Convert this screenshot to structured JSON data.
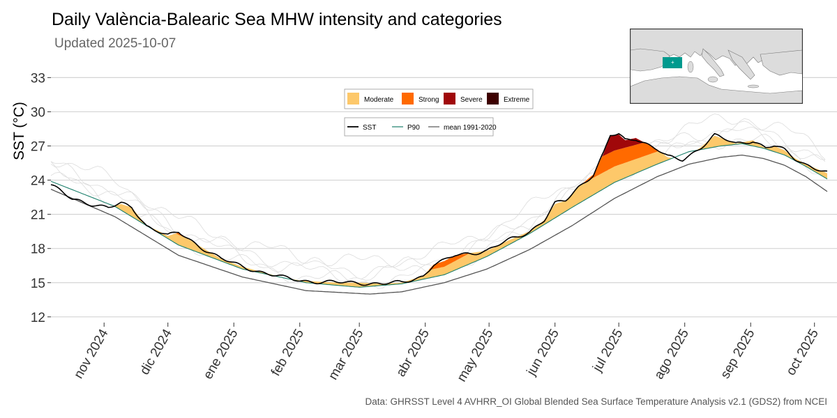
{
  "chart_data": {
    "type": "area",
    "title": "Daily València-Balearic Sea MHW intensity and categories",
    "subtitle": "Updated 2025-10-07",
    "ylabel": "SST (°C)",
    "xlabel": "",
    "ylim": [
      11.5,
      34
    ],
    "yticks": [
      12,
      15,
      18,
      21,
      24,
      27,
      30,
      33
    ],
    "x_start": "2024-10-07",
    "x_end": "2025-10-07",
    "xticks": [
      {
        "label": "nov 2024",
        "day": 25
      },
      {
        "label": "dic 2024",
        "day": 55
      },
      {
        "label": "ene 2025",
        "day": 86
      },
      {
        "label": "feb 2025",
        "day": 117
      },
      {
        "label": "mar 2025",
        "day": 145
      },
      {
        "label": "abr 2025",
        "day": 176
      },
      {
        "label": "may 2025",
        "day": 206
      },
      {
        "label": "jun 2025",
        "day": 237
      },
      {
        "label": "jul 2025",
        "day": 267
      },
      {
        "label": "ago 2025",
        "day": 298
      },
      {
        "label": "sep 2025",
        "day": 329
      },
      {
        "label": "oct 2025",
        "day": 359
      }
    ],
    "categories_legend": [
      {
        "name": "Moderate",
        "color": "#fdc86a"
      },
      {
        "name": "Strong",
        "color": "#ff6a00"
      },
      {
        "name": "Severe",
        "color": "#a0080a"
      },
      {
        "name": "Extreme",
        "color": "#3d0000"
      }
    ],
    "lines_legend": [
      {
        "name": "SST",
        "color": "#000000"
      },
      {
        "name": "P90",
        "color": "#1b7f6b"
      },
      {
        "name": "mean 1991-2020",
        "color": "#555555"
      }
    ],
    "series": [
      {
        "name": "SST",
        "days": [
          0,
          10,
          20,
          27,
          33,
          38,
          45,
          50,
          55,
          60,
          70,
          80,
          90,
          100,
          110,
          117,
          125,
          135,
          145,
          155,
          165,
          175,
          180,
          185,
          190,
          197,
          205,
          215,
          225,
          232,
          237,
          242,
          248,
          255,
          260,
          263,
          267,
          270,
          275,
          280,
          285,
          290,
          297,
          305,
          312,
          318,
          322,
          330,
          336,
          340,
          345,
          350,
          355,
          360,
          365
        ],
        "values": [
          23.6,
          22.3,
          21.9,
          21.6,
          21.9,
          21.6,
          20.0,
          19.6,
          19.1,
          19.4,
          18.2,
          17.1,
          16.4,
          15.9,
          15.4,
          15.2,
          15.1,
          15.0,
          15.0,
          14.9,
          15.0,
          15.6,
          16.6,
          16.9,
          17.4,
          17.6,
          17.8,
          18.7,
          19.5,
          20.5,
          21.9,
          22.2,
          23.4,
          24.5,
          26.4,
          27.9,
          28.0,
          27.5,
          27.7,
          27.2,
          26.7,
          26.0,
          25.8,
          26.8,
          27.9,
          27.5,
          27.2,
          27.5,
          26.8,
          27.0,
          26.6,
          25.9,
          25.4,
          25.0,
          24.6
        ]
      },
      {
        "name": "P90",
        "days": [
          0,
          30,
          60,
          90,
          120,
          145,
          165,
          185,
          205,
          225,
          245,
          265,
          285,
          300,
          315,
          325,
          335,
          345,
          355,
          365
        ],
        "values": [
          23.9,
          21.7,
          18.3,
          16.2,
          15.0,
          14.6,
          14.9,
          15.7,
          17.3,
          19.3,
          21.6,
          23.8,
          25.4,
          26.5,
          27.0,
          27.2,
          26.8,
          26.2,
          25.2,
          24.1
        ]
      },
      {
        "name": "mean 1991-2020",
        "days": [
          0,
          30,
          60,
          90,
          120,
          150,
          165,
          185,
          205,
          225,
          245,
          265,
          285,
          300,
          315,
          325,
          335,
          345,
          355,
          365
        ],
        "values": [
          23.2,
          20.8,
          17.4,
          15.5,
          14.3,
          14.0,
          14.2,
          15.0,
          16.2,
          17.9,
          20.0,
          22.4,
          24.3,
          25.4,
          26.0,
          26.2,
          25.9,
          25.3,
          24.3,
          23.0
        ]
      }
    ],
    "category_intensity_factors": {
      "strong": 2,
      "severe": 3,
      "extreme": 4
    }
  },
  "caption": "Data: GHRSST Level 4 AVHRR_OI Global Blended Sea Surface Temperature Analysis v2.1 (GDS2) from NCEI",
  "inset_map": {
    "region": "València-Balearic Sea",
    "highlight_color": "#009a8e",
    "land_color": "#dcdcdc"
  }
}
